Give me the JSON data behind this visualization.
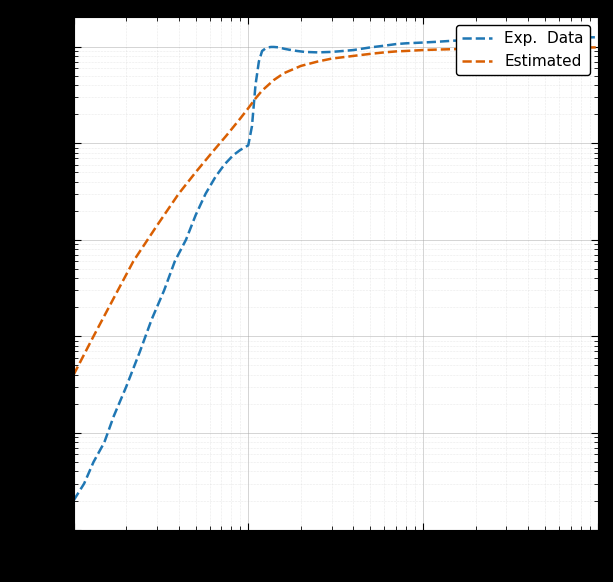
{
  "title": "",
  "xlabel": "",
  "ylabel": "",
  "xlim": [
    0.1,
    100
  ],
  "ylim": [
    1e-09,
    0.0002
  ],
  "legend_entries": [
    "Exp.  Data",
    "Estimated"
  ],
  "line_colors": [
    "#1f77b4",
    "#d95f02"
  ],
  "line_width": 1.8,
  "background_color": "#ffffff",
  "outer_background": "#000000",
  "grid_major_color": "#aaaaaa",
  "grid_minor_color": "#cccccc",
  "exp_x": [
    0.1,
    0.115,
    0.13,
    0.15,
    0.17,
    0.2,
    0.24,
    0.28,
    0.33,
    0.38,
    0.44,
    0.5,
    0.57,
    0.65,
    0.73,
    0.82,
    0.9,
    0.95,
    1.0,
    1.05,
    1.1,
    1.15,
    1.2,
    1.25,
    1.3,
    1.35,
    1.4,
    1.5,
    1.6,
    1.7,
    1.9,
    2.1,
    2.5,
    3.0,
    3.5,
    4.0,
    5.0,
    6.0,
    7.0,
    8.0,
    10.0,
    12.0,
    15.0,
    20.0,
    25.0,
    30.0,
    40.0,
    50.0,
    60.0,
    70.0,
    100.0
  ],
  "exp_y": [
    2e-09,
    3e-09,
    5e-09,
    8e-09,
    1.5e-08,
    3e-08,
    7e-08,
    1.5e-07,
    3e-07,
    6e-07,
    1e-06,
    1.8e-06,
    3e-06,
    4.5e-06,
    6e-06,
    7.5e-06,
    8.5e-06,
    9e-06,
    9.5e-06,
    1.5e-05,
    4e-05,
    7e-05,
    9e-05,
    9.5e-05,
    9.8e-05,
    9.9e-05,
    9.9e-05,
    9.8e-05,
    9.5e-05,
    9.3e-05,
    9e-05,
    8.8e-05,
    8.7e-05,
    8.8e-05,
    9e-05,
    9.2e-05,
    9.8e-05,
    0.000102,
    0.000106,
    0.000108,
    0.00011,
    0.000112,
    0.000115,
    0.000117,
    0.000119,
    0.00012,
    0.000121,
    0.000122,
    0.000123,
    0.000123,
    0.000125
  ],
  "est_x": [
    0.1,
    0.13,
    0.17,
    0.22,
    0.3,
    0.4,
    0.5,
    0.62,
    0.75,
    0.9,
    1.0,
    1.1,
    1.2,
    1.4,
    1.6,
    2.0,
    2.5,
    3.0,
    4.0,
    5.0,
    6.0,
    7.0,
    8.0,
    10.0,
    12.0,
    15.0,
    20.0,
    30.0,
    50.0,
    70.0,
    100.0
  ],
  "est_y": [
    4e-08,
    1e-07,
    2.5e-07,
    6e-07,
    1.4e-06,
    3e-06,
    5e-06,
    8e-06,
    1.2e-05,
    1.8e-05,
    2.3e-05,
    2.9e-05,
    3.5e-05,
    4.5e-05,
    5.3e-05,
    6.3e-05,
    7e-05,
    7.5e-05,
    8e-05,
    8.4e-05,
    8.7e-05,
    8.9e-05,
    9e-05,
    9.2e-05,
    9.3e-05,
    9.4e-05,
    9.5e-05,
    9.6e-05,
    9.7e-05,
    9.75e-05,
    9.8e-05
  ]
}
